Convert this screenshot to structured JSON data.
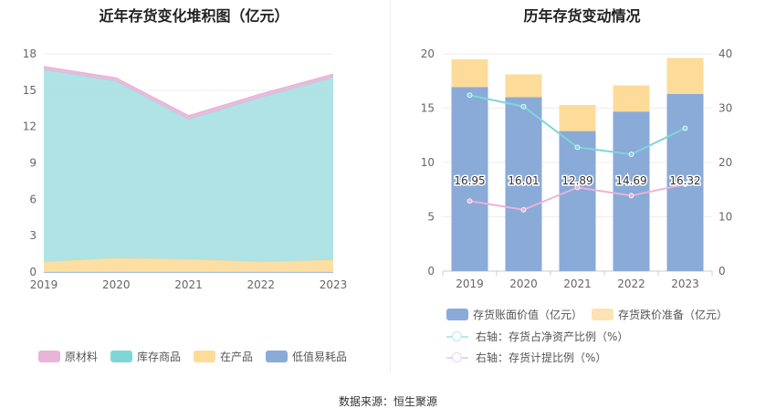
{
  "left_chart": {
    "title": "近年存货变化堆积图（亿元）",
    "legend": [
      {
        "label": "原材料",
        "color": "#e8b4d8"
      },
      {
        "label": "库存商品",
        "color": "#7fd6d8"
      },
      {
        "label": "在产品",
        "color": "#fddb99"
      },
      {
        "label": "低值易耗品",
        "color": "#8aaad8"
      }
    ]
  },
  "right_chart": {
    "title": "历年存货变动情况",
    "legend": [
      {
        "label": "存货账面价值（亿元）",
        "color": "#8aaad8"
      },
      {
        "label": "存货跌价准备（亿元）",
        "color": "#fde2b4"
      },
      {
        "label": "右轴：存货占净资产比例（%）",
        "color": "#7fd6d8"
      },
      {
        "label": "右轴：存货计提比例（%）",
        "color": "#e8b4d8"
      }
    ]
  },
  "chart_data": [
    {
      "type": "area",
      "stacked": true,
      "title": "近年存货变化堆积图（亿元）",
      "categories": [
        "2019",
        "2020",
        "2021",
        "2022",
        "2023"
      ],
      "ylim": [
        0,
        18
      ],
      "yticks": [
        0,
        3,
        6,
        9,
        12,
        15,
        18
      ],
      "series": [
        {
          "name": "低值易耗品",
          "color": "#8aaad8",
          "values": [
            0,
            0,
            0,
            0,
            0
          ]
        },
        {
          "name": "在产品",
          "color": "#fddb99",
          "values": [
            0.85,
            1.15,
            1.05,
            0.85,
            1.0
          ]
        },
        {
          "name": "库存商品",
          "color": "#a6e0e2",
          "values": [
            15.85,
            14.6,
            11.55,
            13.55,
            15.05
          ]
        },
        {
          "name": "原材料",
          "color": "#e8b4d8",
          "values": [
            0.25,
            0.26,
            0.29,
            0.29,
            0.27
          ]
        }
      ],
      "grid": true,
      "legend_position": "bottom"
    },
    {
      "type": "bar",
      "stacked": true,
      "title": "历年存货变动情况",
      "categories": [
        "2019",
        "2020",
        "2021",
        "2022",
        "2023"
      ],
      "ylim": [
        0,
        20
      ],
      "yticks": [
        0,
        5,
        10,
        15,
        20
      ],
      "y2lim": [
        0,
        40
      ],
      "y2ticks": [
        0,
        10,
        20,
        30,
        40
      ],
      "series": [
        {
          "name": "存货账面价值（亿元）",
          "color": "#8aaad8",
          "values": [
            16.95,
            16.01,
            12.89,
            14.69,
            16.32
          ],
          "labels": [
            "16.95",
            "16.01",
            "12.89",
            "14.69",
            "16.32"
          ]
        },
        {
          "name": "存货跌价准备（亿元）",
          "color": "#fddb99",
          "values": [
            2.55,
            2.1,
            2.4,
            2.4,
            3.3
          ]
        }
      ],
      "lines": [
        {
          "name": "右轴：存货占净资产比例（%）",
          "color": "#7fd6d8",
          "axis": "right",
          "values": [
            32.4,
            30.3,
            22.8,
            21.5,
            26.3
          ]
        },
        {
          "name": "右轴：存货计提比例（%）",
          "color": "#e8b4d8",
          "axis": "right",
          "values": [
            12.9,
            11.3,
            15.4,
            13.9,
            16.0
          ]
        }
      ],
      "grid": true,
      "legend_position": "bottom"
    }
  ],
  "source": "数据来源：恒生聚源"
}
